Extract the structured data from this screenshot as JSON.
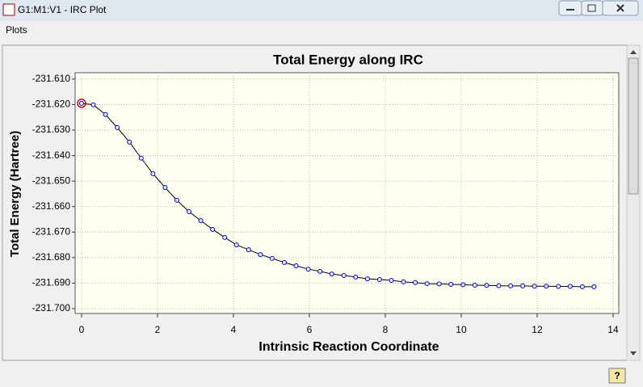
{
  "window": {
    "title": "G1:M1:V1 - IRC Plot",
    "menu": [
      "Plots"
    ]
  },
  "chart_data": {
    "type": "line",
    "title": "Total Energy along IRC",
    "x_label": "Intrinsic Reaction Coordinate",
    "y_label": "Total Energy (Hartree)",
    "x": [
      0,
      0.31,
      0.63,
      0.94,
      1.26,
      1.57,
      1.88,
      2.2,
      2.51,
      2.83,
      3.14,
      3.45,
      3.77,
      4.08,
      4.4,
      4.71,
      5.02,
      5.34,
      5.65,
      5.97,
      6.28,
      6.59,
      6.91,
      7.22,
      7.53,
      7.85,
      8.16,
      8.48,
      8.79,
      9.1,
      9.42,
      9.73,
      10.05,
      10.36,
      10.67,
      10.99,
      11.3,
      11.62,
      11.93,
      12.24,
      12.56,
      12.87,
      13.19,
      13.5
    ],
    "series": [
      {
        "name": "Total Energy",
        "color": "#0000cc",
        "line_color": "#000000",
        "values": [
          -231.6195,
          -231.6201,
          -231.6239,
          -231.629,
          -231.6347,
          -231.641,
          -231.6471,
          -231.6525,
          -231.6575,
          -231.662,
          -231.6655,
          -231.6689,
          -231.6721,
          -231.675,
          -231.6769,
          -231.6788,
          -231.6803,
          -231.6819,
          -231.6832,
          -231.6845,
          -231.6854,
          -231.6864,
          -231.687,
          -231.6876,
          -231.6883,
          -231.6886,
          -231.6889,
          -231.6895,
          -231.6898,
          -231.6902,
          -231.6903,
          -231.6905,
          -231.6906,
          -231.6908,
          -231.6909,
          -231.691,
          -231.6911,
          -231.6911,
          -231.6912,
          -231.6912,
          -231.6913,
          -231.6913,
          -231.6914,
          -231.6914
        ]
      }
    ],
    "highlight_index": 0,
    "highlight_color": "#cc0000",
    "xlim": [
      -0.17,
      14.15
    ],
    "ylim": [
      -231.7019,
      -231.6075
    ],
    "xticks": [
      0,
      2,
      4,
      6,
      8,
      10,
      12,
      14
    ],
    "yticks": [
      {
        "value": -231.61,
        "label": "-231.610"
      },
      {
        "value": -231.62,
        "label": "-231.620"
      },
      {
        "value": -231.63,
        "label": "-231.630"
      },
      {
        "value": -231.64,
        "label": "-231.640"
      },
      {
        "value": -231.65,
        "label": "-231.650"
      },
      {
        "value": -231.66,
        "label": "-231.660"
      },
      {
        "value": -231.67,
        "label": "-231.670"
      },
      {
        "value": -231.68,
        "label": "-231.680"
      },
      {
        "value": -231.69,
        "label": "-231.690"
      },
      {
        "value": -231.7,
        "label": "-231.700"
      }
    ],
    "grid": true,
    "plot_background": "#fffff2"
  }
}
